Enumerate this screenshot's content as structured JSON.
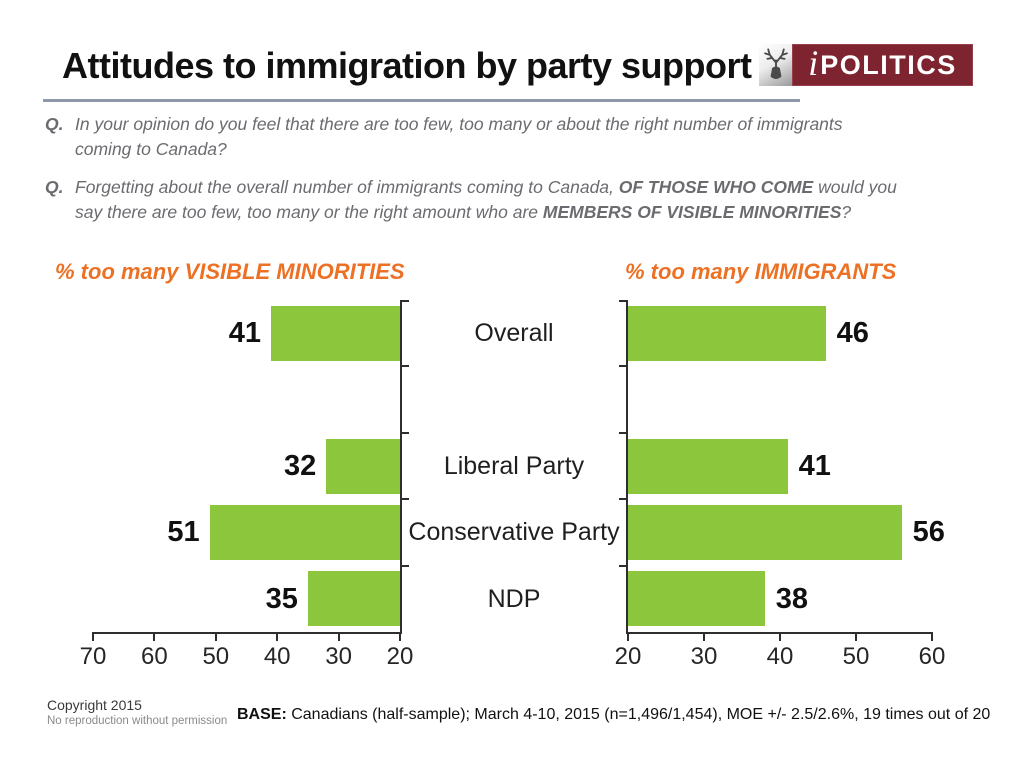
{
  "slide": {
    "title": "Attitudes to immigration by party support"
  },
  "logo": {
    "name": "iPolitics",
    "i": "i",
    "rest": "POLITICS"
  },
  "questions": [
    {
      "prefix": "Q.",
      "segments": [
        {
          "text": "In your opinion do you feel that there are too few, too many or about the right number of immigrants\ncoming to Canada?",
          "bold": false
        }
      ]
    },
    {
      "prefix": "Q.",
      "segments": [
        {
          "text": "Forgetting about the overall number of immigrants coming to Canada, ",
          "bold": false
        },
        {
          "text": "OF THOSE WHO COME",
          "bold": true
        },
        {
          "text": " would you\nsay there are too few, too many or the right amount who are ",
          "bold": false
        },
        {
          "text": "MEMBERS OF VISIBLE MINORITIES",
          "bold": true
        },
        {
          "text": "?",
          "bold": false
        }
      ]
    }
  ],
  "chart_data": [
    {
      "type": "bar",
      "side": "left",
      "orientation": "horizontal",
      "direction": "right-to-left",
      "title": "% too many VISIBLE MINORITIES",
      "title_color": "#EC7125",
      "categories": [
        "Overall",
        "",
        "Liberal Party",
        "Conservative Party",
        "NDP"
      ],
      "values": [
        41,
        null,
        32,
        51,
        35
      ],
      "axis_ticks": [
        70,
        60,
        50,
        40,
        30,
        20
      ],
      "xlim": [
        70,
        20
      ],
      "bar_color": "#8CC63C",
      "grid": false,
      "legend": "none"
    },
    {
      "type": "bar",
      "side": "right",
      "orientation": "horizontal",
      "direction": "left-to-right",
      "title": "% too many IMMIGRANTS",
      "title_color": "#EC7125",
      "categories": [
        "Overall",
        "",
        "Liberal Party",
        "Conservative Party",
        "NDP"
      ],
      "values": [
        46,
        null,
        41,
        56,
        38
      ],
      "axis_ticks": [
        20,
        30,
        40,
        50,
        60
      ],
      "xlim": [
        20,
        60
      ],
      "bar_color": "#8CC63C",
      "grid": false,
      "legend": "none"
    }
  ],
  "footer": {
    "copyright_line1": "Copyright 2015",
    "copyright_line2": "No reproduction without permission",
    "base_label": "BASE:",
    "base_text": " Canadians (half-sample); March 4-10, 2015 (n=1,496/1,454), MOE +/- 2.5/2.6%, 19 times out of 20"
  },
  "colors": {
    "bar_green": "#8CC63C",
    "accent_orange": "#EC7125",
    "logo_maroon": "#7E2430",
    "divider_gray": "#8F98A8",
    "axis_dark": "#2e2e2e",
    "question_gray": "#6b6b70"
  }
}
